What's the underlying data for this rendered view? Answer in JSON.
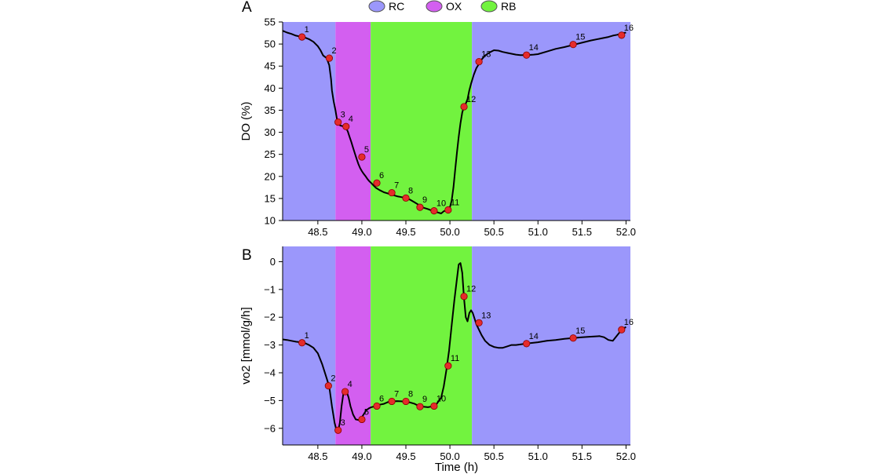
{
  "legend": [
    {
      "label": "RC",
      "color": "#9b97fb"
    },
    {
      "label": "OX",
      "color": "#d35ff0"
    },
    {
      "label": "RB",
      "color": "#72f33f"
    }
  ],
  "chart_data": [
    {
      "type": "line",
      "panel_label": "A",
      "xlabel": "",
      "ylabel": "DO (%)",
      "xlim": [
        48.1,
        52.05
      ],
      "ylim": [
        10,
        55
      ],
      "xticks": [
        48.5,
        49.0,
        49.5,
        50.0,
        50.5,
        51.0,
        51.5,
        52.0
      ],
      "yticks": [
        10,
        15,
        20,
        25,
        30,
        35,
        40,
        45,
        50,
        55
      ],
      "x_tick_labels": [
        "48.5",
        "49.0",
        "49.5",
        "50.0",
        "50.5",
        "51.0",
        "51.5",
        "52.0"
      ],
      "y_tick_labels": [
        "10",
        "15",
        "20",
        "25",
        "30",
        "35",
        "40",
        "45",
        "50",
        "55"
      ],
      "regions": [
        {
          "label": "RC",
          "x0": 48.1,
          "x1": 48.7
        },
        {
          "label": "OX",
          "x0": 48.7,
          "x1": 49.1
        },
        {
          "label": "RB",
          "x0": 49.1,
          "x1": 50.25
        },
        {
          "label": "RC",
          "x0": 50.25,
          "x1": 52.05
        }
      ],
      "series": [
        {
          "x": [
            48.1,
            48.15,
            48.2,
            48.25,
            48.3,
            48.35,
            48.4,
            48.45,
            48.5,
            48.53,
            48.56,
            48.6,
            48.63,
            48.65,
            48.66,
            48.68,
            48.7,
            48.71,
            48.72,
            48.73,
            48.74,
            48.75,
            48.76,
            48.78,
            48.8,
            48.82,
            48.84,
            48.86,
            48.88,
            48.9,
            48.92,
            48.94,
            48.96,
            48.98,
            49.0,
            49.02,
            49.04,
            49.06,
            49.08,
            49.1,
            49.13,
            49.16,
            49.2,
            49.25,
            49.3,
            49.35,
            49.4,
            49.45,
            49.5,
            49.55,
            49.6,
            49.65,
            49.7,
            49.75,
            49.8,
            49.85,
            49.9,
            49.93,
            49.96,
            50.0,
            50.02,
            50.04,
            50.06,
            50.08,
            50.1,
            50.12,
            50.14,
            50.16,
            50.18,
            50.2,
            50.22,
            50.24,
            50.27,
            50.3,
            50.33,
            50.36,
            50.4,
            50.45,
            50.5,
            50.55,
            50.6,
            50.65,
            50.7,
            50.75,
            50.8,
            50.87,
            50.95,
            51.0,
            51.1,
            51.2,
            51.3,
            51.4,
            51.5,
            51.6,
            51.7,
            51.8,
            51.85,
            51.9,
            51.95,
            52.0
          ],
          "y": [
            53.0,
            52.6,
            52.3,
            51.9,
            51.7,
            51.5,
            51.1,
            50.5,
            49.5,
            48.6,
            47.4,
            46.8,
            45.2,
            42.0,
            39.5,
            37.0,
            35.0,
            33.8,
            32.7,
            32.0,
            31.8,
            31.6,
            31.5,
            31.4,
            31.3,
            31.0,
            30.2,
            29.0,
            27.8,
            26.5,
            25.2,
            24.0,
            22.8,
            21.9,
            21.2,
            20.6,
            20.1,
            19.5,
            19.0,
            18.6,
            18.0,
            17.4,
            16.9,
            16.4,
            16.1,
            15.8,
            15.5,
            15.3,
            15.1,
            14.7,
            14.1,
            13.5,
            12.9,
            12.6,
            12.2,
            11.9,
            11.6,
            12.1,
            12.3,
            13.0,
            14.5,
            17.5,
            21.5,
            25.5,
            29.0,
            32.0,
            34.5,
            35.8,
            36.5,
            37.5,
            39.5,
            41.0,
            43.0,
            44.5,
            45.5,
            46.5,
            47.4,
            48.1,
            48.6,
            48.5,
            48.2,
            48.0,
            47.8,
            47.6,
            47.5,
            47.5,
            47.6,
            47.7,
            48.3,
            48.9,
            49.3,
            49.8,
            50.3,
            50.8,
            51.2,
            51.6,
            51.9,
            52.1,
            52.4,
            52.6
          ]
        }
      ],
      "points": [
        {
          "label": "1",
          "x": 48.32,
          "y": 51.6
        },
        {
          "label": "2",
          "x": 48.63,
          "y": 46.8
        },
        {
          "label": "3",
          "x": 48.73,
          "y": 32.3
        },
        {
          "label": "4",
          "x": 48.82,
          "y": 31.3
        },
        {
          "label": "5",
          "x": 49.0,
          "y": 24.4
        },
        {
          "label": "6",
          "x": 49.17,
          "y": 18.5
        },
        {
          "label": "7",
          "x": 49.34,
          "y": 16.3
        },
        {
          "label": "8",
          "x": 49.5,
          "y": 15.1
        },
        {
          "label": "9",
          "x": 49.66,
          "y": 13.0
        },
        {
          "label": "10",
          "x": 49.82,
          "y": 12.2
        },
        {
          "label": "11",
          "x": 49.98,
          "y": 12.4
        },
        {
          "label": "12",
          "x": 50.16,
          "y": 35.8
        },
        {
          "label": "13",
          "x": 50.33,
          "y": 46.0
        },
        {
          "label": "14",
          "x": 50.87,
          "y": 47.5
        },
        {
          "label": "15",
          "x": 51.4,
          "y": 49.9
        },
        {
          "label": "16",
          "x": 51.95,
          "y": 52.0
        }
      ]
    },
    {
      "type": "line",
      "panel_label": "B",
      "xlabel": "Time (h)",
      "ylabel": "vo2 [mmol/g/h]",
      "xlim": [
        48.1,
        52.05
      ],
      "ylim": [
        -6.6,
        0.55
      ],
      "xticks": [
        48.5,
        49.0,
        49.5,
        50.0,
        50.5,
        51.0,
        51.5,
        52.0
      ],
      "yticks": [
        0,
        -1,
        -2,
        -3,
        -4,
        -5,
        -6
      ],
      "x_tick_labels": [
        "48.5",
        "49.0",
        "49.5",
        "50.0",
        "50.5",
        "51.0",
        "51.5",
        "52.0"
      ],
      "y_tick_labels": [
        "0",
        "−1",
        "−2",
        "−3",
        "−4",
        "−5",
        "−6"
      ],
      "regions": [
        {
          "label": "RC",
          "x0": 48.1,
          "x1": 48.7
        },
        {
          "label": "OX",
          "x0": 48.7,
          "x1": 49.1
        },
        {
          "label": "RB",
          "x0": 49.1,
          "x1": 50.25
        },
        {
          "label": "RC",
          "x0": 50.25,
          "x1": 52.05
        }
      ],
      "series": [
        {
          "x": [
            48.1,
            48.15,
            48.2,
            48.25,
            48.3,
            48.35,
            48.4,
            48.45,
            48.5,
            48.55,
            48.6,
            48.63,
            48.66,
            48.69,
            48.71,
            48.73,
            48.75,
            48.77,
            48.79,
            48.81,
            48.83,
            48.85,
            48.87,
            48.9,
            48.93,
            48.96,
            48.99,
            49.02,
            49.05,
            49.08,
            49.1,
            49.13,
            49.16,
            49.2,
            49.25,
            49.3,
            49.35,
            49.4,
            49.45,
            49.5,
            49.55,
            49.6,
            49.65,
            49.7,
            49.75,
            49.8,
            49.85,
            49.9,
            49.93,
            49.96,
            49.99,
            50.02,
            50.05,
            50.08,
            50.1,
            50.12,
            50.14,
            50.16,
            50.18,
            50.2,
            50.22,
            50.24,
            50.26,
            50.28,
            50.3,
            50.33,
            50.36,
            50.4,
            50.45,
            50.5,
            50.55,
            50.6,
            50.65,
            50.7,
            50.75,
            50.8,
            50.87,
            50.95,
            51.0,
            51.1,
            51.2,
            51.3,
            51.4,
            51.5,
            51.6,
            51.7,
            51.75,
            51.8,
            51.85,
            51.9,
            51.95,
            52.0
          ],
          "y": [
            -2.8,
            -2.82,
            -2.85,
            -2.88,
            -2.9,
            -2.93,
            -3.0,
            -3.1,
            -3.3,
            -3.7,
            -4.2,
            -4.5,
            -5.2,
            -5.8,
            -6.05,
            -6.1,
            -5.8,
            -5.2,
            -4.75,
            -4.65,
            -4.7,
            -4.9,
            -5.2,
            -5.5,
            -5.68,
            -5.7,
            -5.65,
            -5.5,
            -5.35,
            -5.28,
            -5.25,
            -5.22,
            -5.18,
            -5.15,
            -5.12,
            -5.05,
            -5.03,
            -5.02,
            -5.03,
            -5.05,
            -5.07,
            -5.12,
            -5.2,
            -5.22,
            -5.24,
            -5.21,
            -5.12,
            -4.9,
            -4.5,
            -3.9,
            -3.2,
            -2.3,
            -1.4,
            -0.6,
            -0.1,
            -0.05,
            -0.4,
            -1.3,
            -2.0,
            -2.15,
            -1.85,
            -1.75,
            -1.85,
            -2.05,
            -2.25,
            -2.45,
            -2.65,
            -2.85,
            -3.0,
            -3.07,
            -3.1,
            -3.1,
            -3.05,
            -3.0,
            -3.0,
            -2.98,
            -2.95,
            -2.92,
            -2.9,
            -2.85,
            -2.82,
            -2.78,
            -2.75,
            -2.72,
            -2.7,
            -2.68,
            -2.72,
            -2.82,
            -2.85,
            -2.65,
            -2.45,
            -2.35
          ]
        }
      ],
      "points": [
        {
          "label": "1",
          "x": 48.32,
          "y": -2.92
        },
        {
          "label": "2",
          "x": 48.62,
          "y": -4.47
        },
        {
          "label": "3",
          "x": 48.73,
          "y": -6.07
        },
        {
          "label": "4",
          "x": 48.81,
          "y": -4.68
        },
        {
          "label": "5",
          "x": 49.0,
          "y": -5.68
        },
        {
          "label": "6",
          "x": 49.17,
          "y": -5.2
        },
        {
          "label": "7",
          "x": 49.34,
          "y": -5.03
        },
        {
          "label": "8",
          "x": 49.5,
          "y": -5.03
        },
        {
          "label": "9",
          "x": 49.66,
          "y": -5.22
        },
        {
          "label": "10",
          "x": 49.82,
          "y": -5.2
        },
        {
          "label": "11",
          "x": 49.98,
          "y": -3.75
        },
        {
          "label": "12",
          "x": 50.16,
          "y": -1.25
        },
        {
          "label": "13",
          "x": 50.33,
          "y": -2.2
        },
        {
          "label": "14",
          "x": 50.87,
          "y": -2.95
        },
        {
          "label": "15",
          "x": 51.4,
          "y": -2.75
        },
        {
          "label": "16",
          "x": 51.95,
          "y": -2.45
        }
      ]
    }
  ]
}
